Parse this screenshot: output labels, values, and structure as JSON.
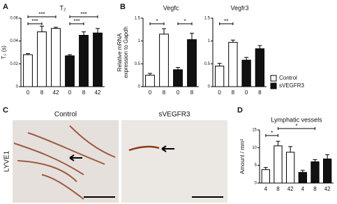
{
  "panel_labels": [
    "A",
    "B",
    "C",
    "D"
  ],
  "panel_c": {
    "row_label": "LYVE1",
    "image_titles": [
      "Control",
      "sVEGFR3"
    ]
  },
  "chart_data": [
    {
      "type": "bar",
      "title": "T₂",
      "y_label": "T₂ (s)",
      "categories": [
        "0",
        "8",
        "42",
        "0",
        "8",
        "42"
      ],
      "series": [
        {
          "name": "Control",
          "color": "#ffffff",
          "values": [
            0.028,
            0.048,
            0.051,
            null,
            null,
            null
          ],
          "errors": [
            0.001,
            0.005,
            0.001,
            null,
            null,
            null
          ]
        },
        {
          "name": "sVEGFR3",
          "color": "#111111",
          "values": [
            null,
            null,
            null,
            0.027,
            0.045,
            0.047
          ],
          "errors": [
            null,
            null,
            null,
            0.001,
            0.003,
            0.004
          ]
        }
      ],
      "ylim": [
        0,
        0.06
      ],
      "yticks": [
        0,
        0.02,
        0.04,
        0.06
      ],
      "annotations": [
        "***",
        "***",
        "***",
        "***"
      ]
    },
    {
      "type": "bar",
      "title": "Vegfc",
      "y_label": [
        "Relative mRNA",
        "expression to Gapdh"
      ],
      "categories": [
        "0",
        "8",
        "0",
        "8"
      ],
      "series": [
        {
          "name": "Control",
          "color": "#ffffff",
          "values": [
            0.25,
            1.15,
            null,
            null
          ],
          "errors": [
            0.04,
            0.12,
            null,
            null
          ]
        },
        {
          "name": "sVEGFR3",
          "color": "#111111",
          "values": [
            null,
            null,
            0.37,
            1.03
          ],
          "errors": [
            null,
            null,
            0.05,
            0.14
          ]
        }
      ],
      "ylim": [
        0,
        1.5
      ],
      "yticks": [
        0,
        0.5,
        1,
        1.5
      ],
      "annotations": [
        "*",
        "*"
      ]
    },
    {
      "type": "bar",
      "title": "Vegfr3",
      "categories": [
        "0",
        "8",
        "0",
        "8"
      ],
      "series": [
        {
          "name": "Control",
          "color": "#ffffff",
          "values": [
            0.45,
            0.97,
            null,
            null
          ],
          "errors": [
            0.06,
            0.05,
            null,
            null
          ]
        },
        {
          "name": "sVEGFR3",
          "color": "#111111",
          "values": [
            null,
            null,
            0.58,
            0.83
          ],
          "errors": [
            null,
            null,
            0.06,
            0.07
          ]
        }
      ],
      "ylim": [
        0,
        1.5
      ],
      "yticks": [
        0,
        0.5,
        1,
        1.5
      ],
      "annotations": [
        "**"
      ]
    },
    {
      "type": "bar",
      "title": "Lymphatic vessels",
      "y_label": "Amount / mm²",
      "categories": [
        "4",
        "8",
        "42",
        "4",
        "8",
        "42"
      ],
      "series": [
        {
          "name": "Control",
          "color": "#ffffff",
          "values": [
            3.8,
            10.5,
            8.7,
            null,
            null,
            null
          ],
          "errors": [
            0.6,
            1.3,
            1.6,
            null,
            null,
            null
          ]
        },
        {
          "name": "sVEGFR3",
          "color": "#111111",
          "values": [
            null,
            null,
            null,
            3.0,
            6.0,
            6.8
          ],
          "errors": [
            null,
            null,
            null,
            0.6,
            0.6,
            1.2
          ]
        }
      ],
      "ylim": [
        0,
        15
      ],
      "yticks": [
        0,
        5,
        10,
        15
      ],
      "annotations": [
        "*",
        "*"
      ]
    }
  ]
}
